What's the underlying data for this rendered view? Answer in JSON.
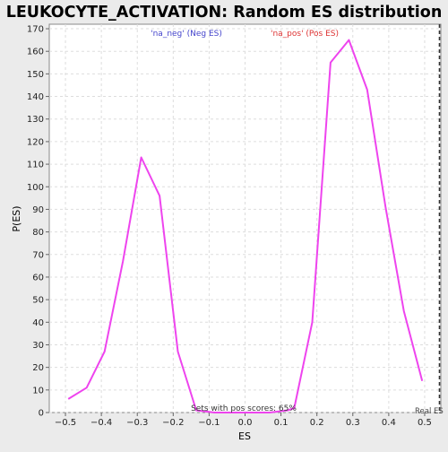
{
  "chart_data": {
    "type": "line",
    "title": "LEUKOCYTE_ACTIVATION: Random ES distribution",
    "xlabel": "ES",
    "ylabel": "P(ES)",
    "xlim": [
      -0.545,
      0.545
    ],
    "ylim": [
      0,
      172
    ],
    "x_ticks": [
      -0.5,
      -0.4,
      -0.3,
      -0.2,
      -0.1,
      0.0,
      0.1,
      0.2,
      0.3,
      0.4,
      0.5
    ],
    "x_tick_labels": [
      "−0.5",
      "−0.4",
      "−0.3",
      "−0.2",
      "−0.1",
      "0.0",
      "0.1",
      "0.2",
      "0.3",
      "0.4",
      "0.5"
    ],
    "y_ticks": [
      0,
      10,
      20,
      30,
      40,
      50,
      60,
      70,
      80,
      90,
      100,
      110,
      120,
      130,
      140,
      150,
      160,
      170
    ],
    "grid": true,
    "series": [
      {
        "color": "#ee44ee",
        "x": [
          -0.492,
          -0.441,
          -0.391,
          -0.34,
          -0.289,
          -0.238,
          -0.187,
          -0.136,
          -0.085,
          -0.034,
          0.017,
          0.068,
          0.119,
          0.137,
          0.187,
          0.238,
          0.289,
          0.34,
          0.391,
          0.442,
          0.493
        ],
        "y": [
          6,
          11,
          27,
          67,
          113,
          96,
          27,
          1,
          0,
          0,
          0,
          0,
          1,
          2,
          40,
          155,
          165,
          143,
          91,
          45,
          14
        ]
      }
    ],
    "annotations": {
      "neg_label": "'na_neg' (Neg ES)",
      "pos_label": "'na_pos' (Pos ES)",
      "neg_color": "#4444cc",
      "pos_color": "#dd3333",
      "pos_scores": "Sets with pos scores: 65%",
      "real_es": "Real ES",
      "real_es_x": 0.545
    }
  }
}
